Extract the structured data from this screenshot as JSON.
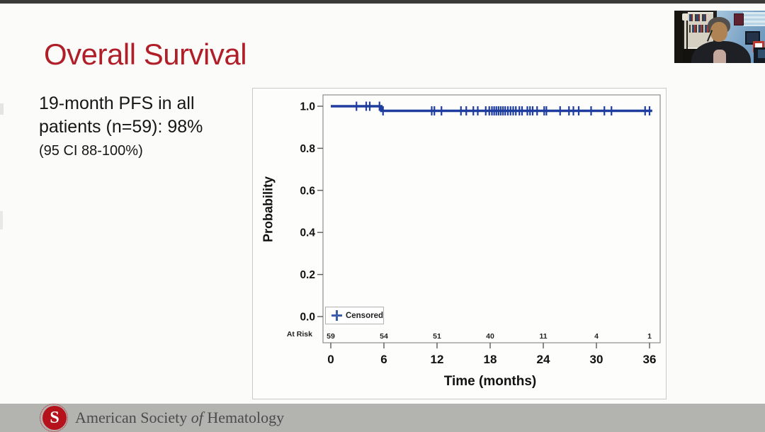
{
  "top_bar": {
    "color": "#3b3b3b"
  },
  "slide": {
    "title": "Overall Survival",
    "title_color": "#b01e28",
    "summary_line1": "19-month PFS in all",
    "summary_line2": "patients (n=59): 98%",
    "summary_ci": "(95 CI 88-100%)"
  },
  "chart_data": {
    "type": "line",
    "subtype": "kaplan-meier-step",
    "title": "",
    "xlabel": "Time (months)",
    "ylabel": "Probability",
    "xticks": [
      0,
      6,
      12,
      18,
      24,
      30,
      36
    ],
    "yticks": [
      1.0,
      0.8,
      0.6,
      0.4,
      0.2,
      0.0
    ],
    "xlim": [
      -0.9,
      37.2
    ],
    "ylim": [
      -0.13,
      1.05
    ],
    "grid": false,
    "line_color": "#1e3d9e",
    "legend_marker_color": "#3c5da8",
    "series": [
      {
        "name": "PFS",
        "step_points": [
          [
            0,
            1.0
          ],
          [
            5.7,
            1.0
          ],
          [
            5.7,
            0.978
          ],
          [
            36.3,
            0.978
          ]
        ]
      }
    ],
    "censor_marks": {
      "before_event": [
        2.9,
        4.0,
        4.4,
        5.5
      ],
      "after_event": [
        5.9,
        11.4,
        11.7,
        12.5,
        14.7,
        15.3,
        16.1,
        16.6,
        17.5,
        17.9,
        18.2,
        18.45,
        18.7,
        18.95,
        19.2,
        19.45,
        19.7,
        20.0,
        20.3,
        20.6,
        20.9,
        21.3,
        21.6,
        22.2,
        22.5,
        22.8,
        23.3,
        24.1,
        24.35,
        25.9,
        26.9,
        27.4,
        28.0,
        29.4,
        30.9,
        31.7,
        35.5,
        36.0
      ]
    },
    "legend": {
      "marker": "+",
      "label": "Censored",
      "position": "bottom-left-inside"
    },
    "at_risk": {
      "label": "At Risk",
      "values": [
        59,
        54,
        51,
        40,
        11,
        4,
        1
      ]
    }
  },
  "footer": {
    "org_name_pre": "American Society",
    "org_name_italic": "of",
    "org_name_post": "Hematology"
  }
}
